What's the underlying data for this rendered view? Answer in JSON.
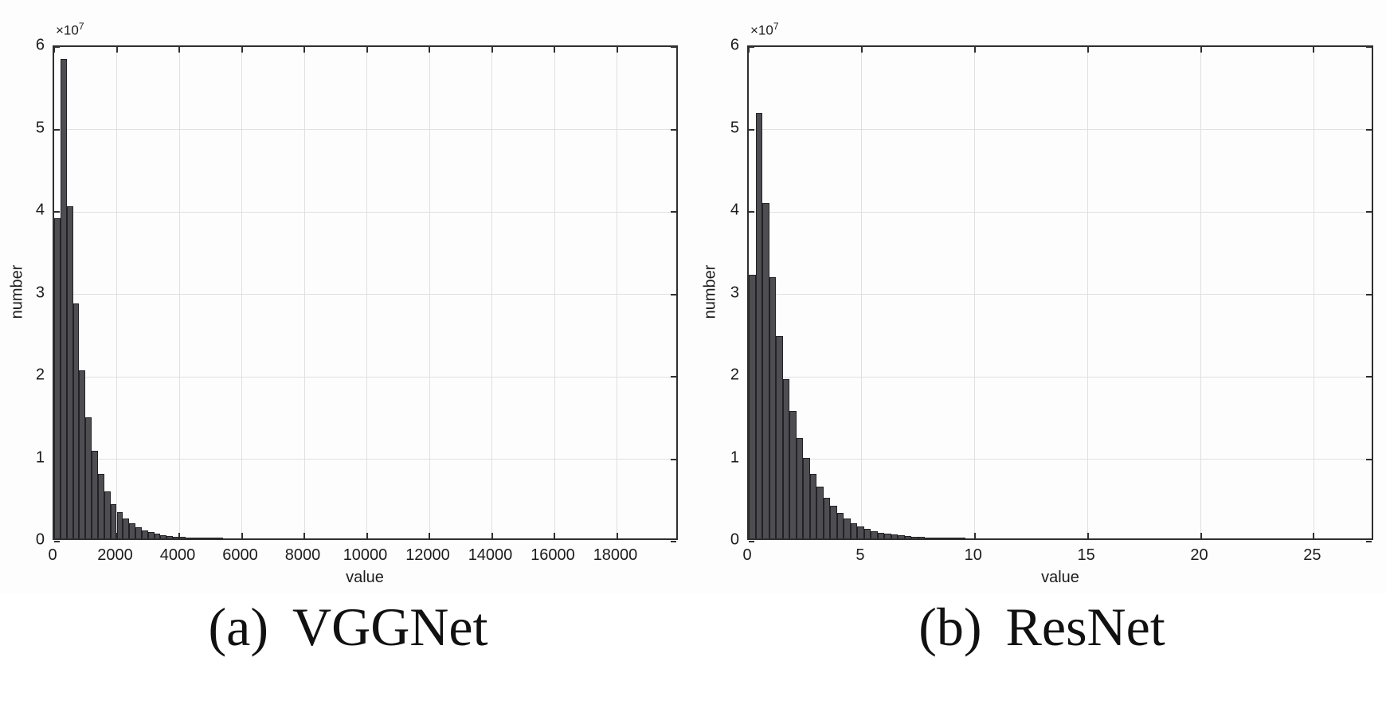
{
  "chart_data": [
    {
      "id": "vggnet",
      "type": "bar",
      "title": "(a) VGGNet",
      "caption_index": "(a)",
      "caption_name": "VGGNet",
      "xlabel": "value",
      "ylabel": "number",
      "y_unit_exponent_base": "×10",
      "y_unit_exponent_power": "7",
      "values_unit": "1e7",
      "bin_start": 0,
      "bin_width": 200,
      "values": [
        3.88,
        5.82,
        4.03,
        2.85,
        2.04,
        1.47,
        1.06,
        0.78,
        0.57,
        0.42,
        0.32,
        0.24,
        0.18,
        0.135,
        0.1,
        0.075,
        0.055,
        0.042,
        0.032,
        0.024,
        0.018,
        0.014,
        0.011,
        0.009,
        0.007,
        0.005,
        0.004,
        0.003,
        0.003,
        0.002
      ],
      "xlim": [
        0,
        20000
      ],
      "xticks": [
        0,
        2000,
        4000,
        6000,
        8000,
        10000,
        12000,
        14000,
        16000,
        18000
      ],
      "ylim": [
        0,
        6
      ],
      "yticks": [
        0,
        1,
        2,
        3,
        4,
        5,
        6
      ],
      "grid": true,
      "legend": "none",
      "bar_color": "#4d4d52"
    },
    {
      "id": "resnet",
      "type": "bar",
      "title": "(b) ResNet",
      "caption_index": "(b)",
      "caption_name": "ResNet",
      "xlabel": "value",
      "ylabel": "number",
      "y_unit_exponent_base": "×10",
      "y_unit_exponent_power": "7",
      "values_unit": "1e7",
      "bin_start": 0,
      "bin_width": 0.3,
      "values": [
        3.2,
        5.16,
        4.07,
        3.17,
        2.45,
        1.93,
        1.55,
        1.22,
        0.98,
        0.78,
        0.63,
        0.49,
        0.4,
        0.31,
        0.24,
        0.185,
        0.145,
        0.115,
        0.09,
        0.072,
        0.057,
        0.045,
        0.036,
        0.028,
        0.022,
        0.018,
        0.014,
        0.011,
        0.009,
        0.007,
        0.006,
        0.005
      ],
      "xlim": [
        0,
        27.7
      ],
      "xticks": [
        0,
        5,
        10,
        15,
        20,
        25
      ],
      "ylim": [
        0,
        6
      ],
      "yticks": [
        0,
        1,
        2,
        3,
        4,
        5,
        6
      ],
      "grid": true,
      "legend": "none",
      "bar_color": "#4d4d52"
    }
  ]
}
